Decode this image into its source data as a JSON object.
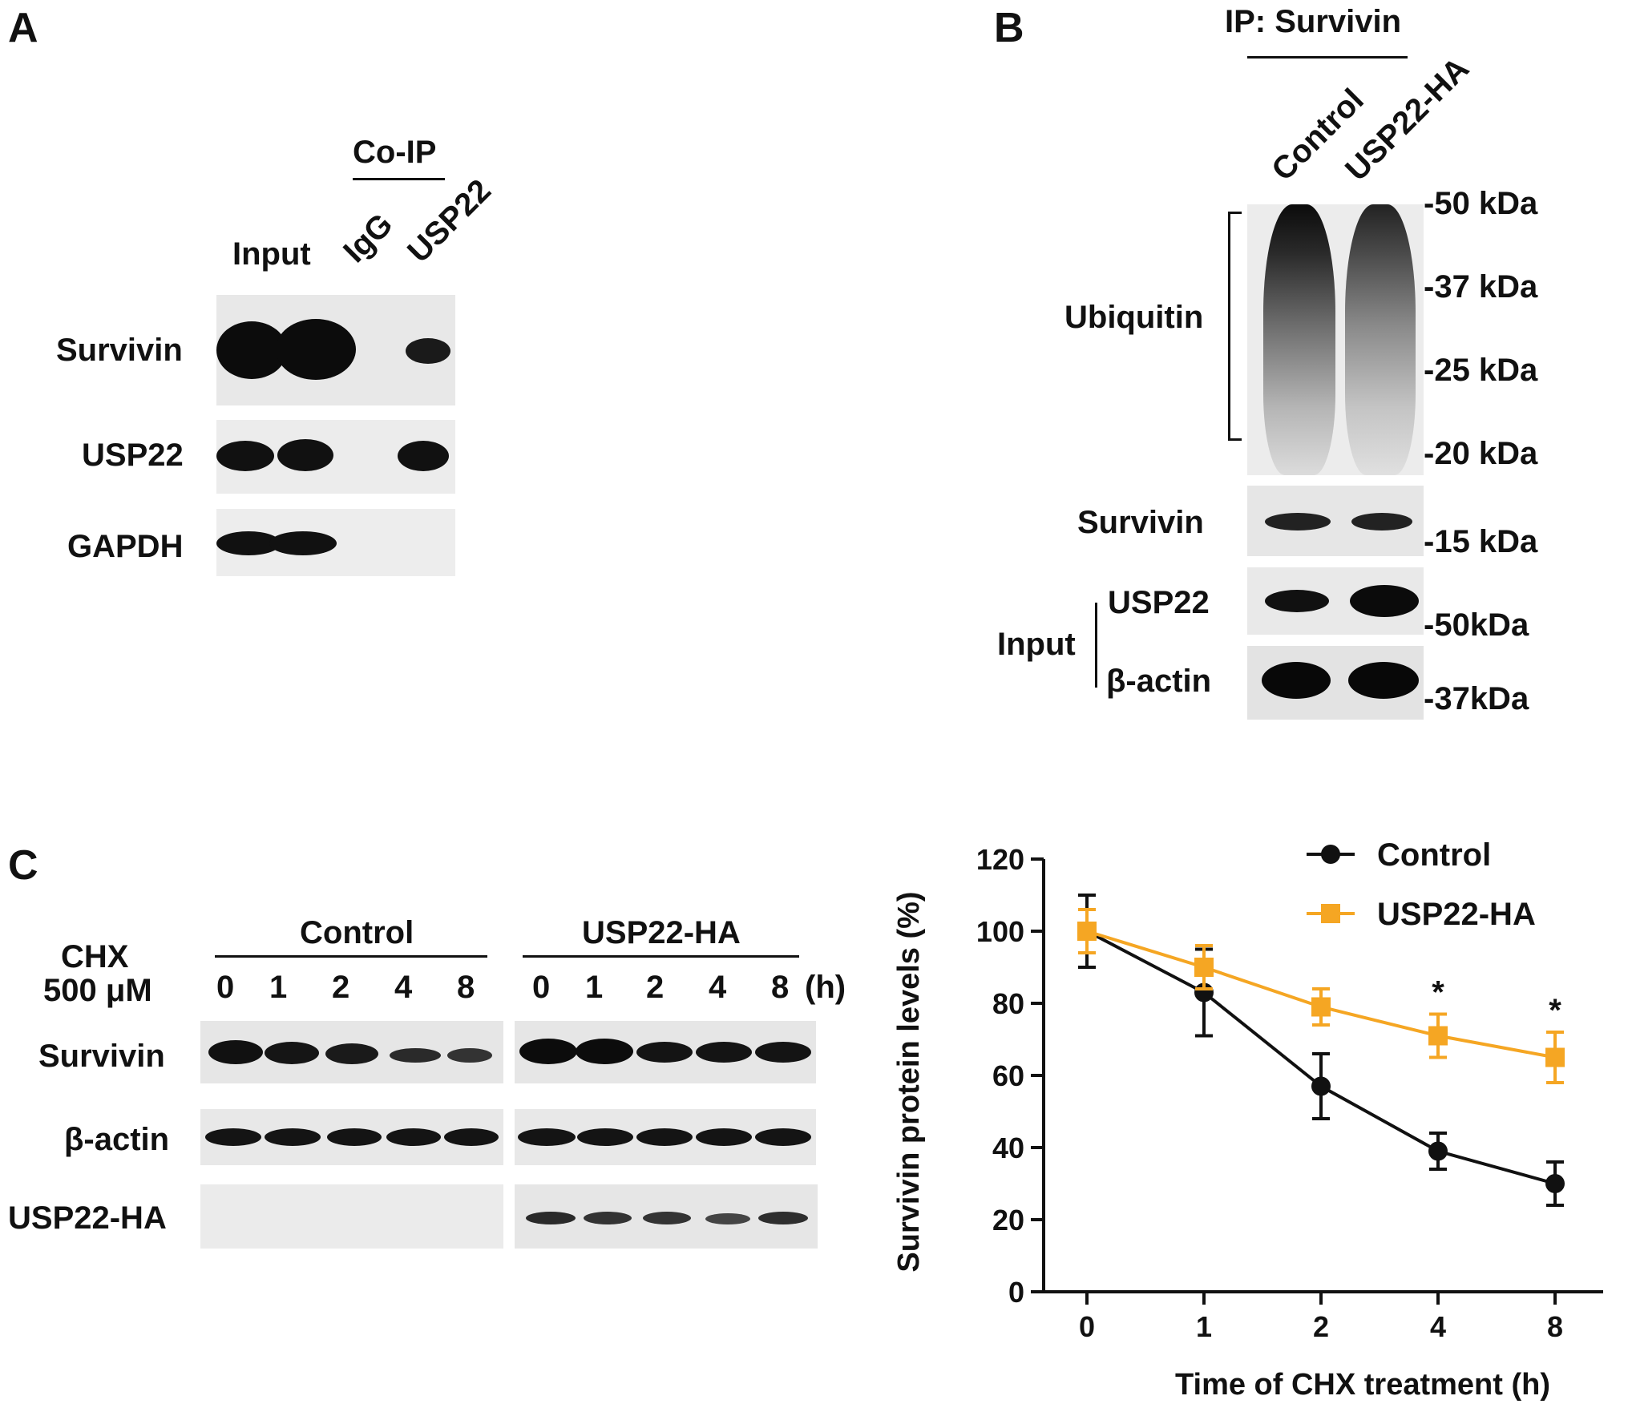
{
  "panelA": {
    "letter": "A",
    "coip_label": "Co-IP",
    "lanes": [
      "Input",
      "IgG",
      "USP22"
    ],
    "rows": [
      "Survivin",
      "USP22",
      "GAPDH"
    ]
  },
  "panelB": {
    "letter": "B",
    "ip_label": "IP: Survivin",
    "lanes": [
      "Control",
      "USP22-HA"
    ],
    "ubiquitin_label": "Ubiquitin",
    "survivin_label": "Survivin",
    "input_label": "Input",
    "usp22_label": "USP22",
    "actin_label": "β-actin",
    "markers": [
      "-50 kDa",
      "-37 kDa",
      "-25 kDa",
      "-20 kDa",
      "-15 kDa",
      "-50kDa",
      "-37kDa"
    ]
  },
  "panelC": {
    "letter": "C",
    "chx_line1": "CHX",
    "chx_line2": "500 μM",
    "group_control": "Control",
    "group_usp22": "USP22-HA",
    "timepoints": [
      "0",
      "1",
      "2",
      "4",
      "8"
    ],
    "hour_unit": "(h)",
    "rows": [
      "Survivin",
      "β-actin",
      "USP22-HA"
    ]
  },
  "colors": {
    "control": "#111111",
    "usp22": "#f5a623",
    "band": "#0d0d0d",
    "gel_bg": "#e9e9e9"
  },
  "chart_data": {
    "type": "line",
    "x": [
      "0",
      "1",
      "2",
      "4",
      "8"
    ],
    "xlabel": "Time of CHX treatment (h)",
    "ylabel": "Survivin protein levels (%)",
    "ylim": [
      0,
      120
    ],
    "yticks": [
      0,
      20,
      40,
      60,
      80,
      100,
      120
    ],
    "legend_position": "top-right",
    "series": [
      {
        "name": "Control",
        "values": [
          100,
          83,
          57,
          39,
          30
        ],
        "errors": [
          10,
          12,
          9,
          5,
          6
        ],
        "marker": "circle"
      },
      {
        "name": "USP22-HA",
        "values": [
          100,
          90,
          79,
          71,
          65
        ],
        "errors": [
          6,
          6,
          5,
          6,
          7
        ],
        "marker": "square"
      }
    ],
    "annotations": [
      {
        "x": "4",
        "text": "*"
      },
      {
        "x": "8",
        "text": "*"
      }
    ]
  }
}
